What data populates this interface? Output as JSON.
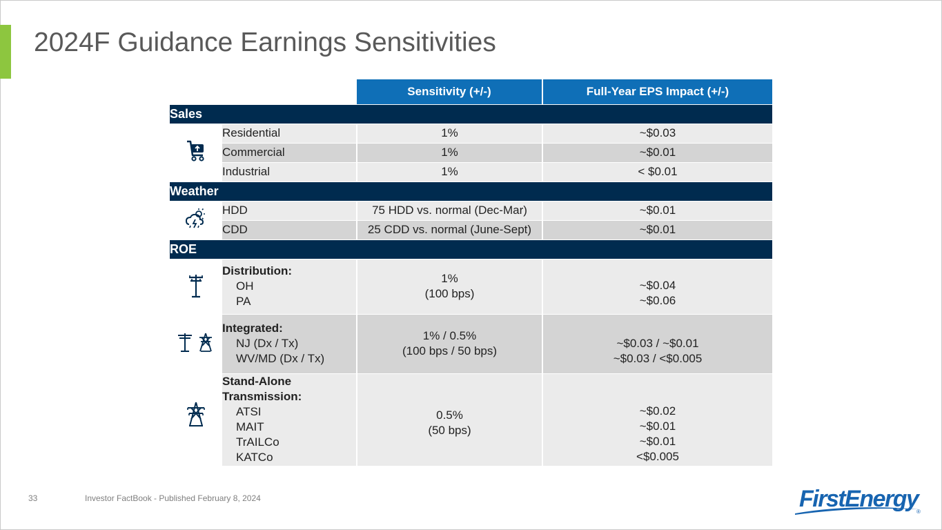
{
  "slide": {
    "title": "2024F Guidance Earnings Sensitivities",
    "page_number": "33",
    "footer": "Investor FactBook - Published February 8, 2024",
    "logo_text": "FirstEnergy",
    "accent_color": "#8dc63f",
    "header_color": "#0f6fb7",
    "section_color": "#002b4f"
  },
  "table": {
    "headers": [
      "Sensitivity (+/-)",
      "Full-Year EPS Impact (+/-)"
    ],
    "sales": {
      "label": "Sales",
      "icon": "shopping-cart-icon",
      "rows": [
        {
          "name": "Residential",
          "sensitivity": "1%",
          "impact": "~$0.03"
        },
        {
          "name": "Commercial",
          "sensitivity": "1%",
          "impact": "~$0.01"
        },
        {
          "name": "Industrial",
          "sensitivity": "1%",
          "impact": "< $0.01"
        }
      ]
    },
    "weather": {
      "label": "Weather",
      "icon": "storm-cloud-icon",
      "rows": [
        {
          "name": "HDD",
          "sensitivity": "75 HDD vs. normal (Dec-Mar)",
          "impact": "~$0.01"
        },
        {
          "name": "CDD",
          "sensitivity": "25 CDD vs. normal (June-Sept)",
          "impact": "~$0.01"
        }
      ]
    },
    "roe": {
      "label": "ROE",
      "distribution": {
        "title": "Distribution:",
        "subs": [
          "OH",
          "PA"
        ],
        "sensitivity": [
          "1%",
          "(100 bps)"
        ],
        "impacts": [
          "~$0.04",
          "~$0.06"
        ]
      },
      "integrated": {
        "title": "Integrated:",
        "subs": [
          "NJ (Dx / Tx)",
          "WV/MD (Dx / Tx)"
        ],
        "sensitivity": [
          "1% / 0.5%",
          "(100 bps / 50 bps)"
        ],
        "impacts": [
          "~$0.03 / ~$0.01",
          "~$0.03 / <$0.005"
        ]
      },
      "transmission": {
        "title": "Stand-Alone Transmission:",
        "subs": [
          "ATSI",
          "MAIT",
          "TrAILCo",
          "KATCo"
        ],
        "sensitivity": [
          "0.5%",
          "(50 bps)"
        ],
        "impacts": [
          "~$0.02",
          "~$0.01",
          "~$0.01",
          "<$0.005"
        ]
      }
    }
  }
}
